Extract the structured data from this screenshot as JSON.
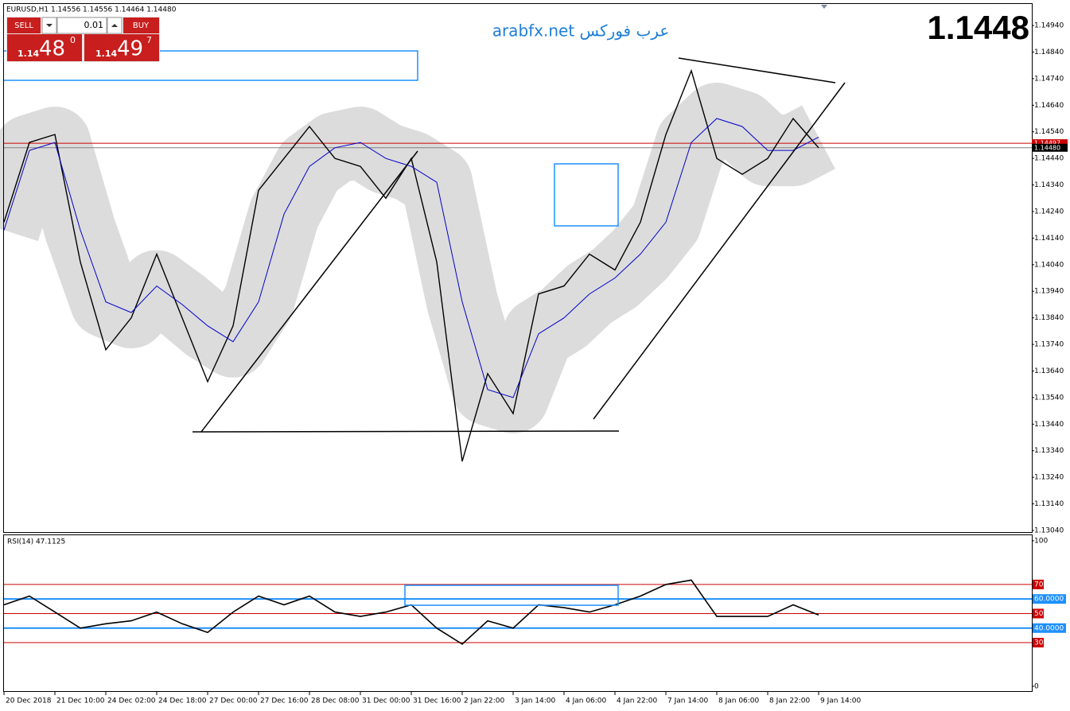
{
  "header": {
    "symbol": "EURUSD,H1  1.14556 1.14556 1.14464 1.14480"
  },
  "trade_panel": {
    "sell": "SELL",
    "buy": "BUY",
    "lot": "0.01",
    "sell_prefix": "1.14",
    "sell_big": "48",
    "sell_sup": "0",
    "buy_prefix": "1.14",
    "buy_big": "49",
    "buy_sup": "7"
  },
  "watermark": "arabfx.net عرب فوركس",
  "big_price": "1.1448",
  "chart_data": [
    {
      "type": "line",
      "x": [
        0,
        8,
        16,
        24,
        32,
        40,
        48,
        56,
        64,
        72,
        80,
        88,
        96,
        104,
        112,
        120,
        128,
        136,
        144,
        152,
        160,
        168,
        176,
        184,
        192,
        200,
        208,
        216,
        224,
        232,
        240,
        248,
        256
      ],
      "series": [
        {
          "color": "#000000",
          "values": [
            1.142,
            1.145,
            1.1453,
            1.1405,
            1.1372,
            1.1384,
            1.1408,
            1.1384,
            1.136,
            1.1381,
            1.1432,
            1.1444,
            1.1456,
            1.1444,
            1.1441,
            1.1429,
            1.1444,
            1.1405,
            1.133,
            1.1363,
            1.1348,
            1.1393,
            1.1396,
            1.1408,
            1.1402,
            1.142,
            1.1453,
            1.1477,
            1.1444,
            1.1438,
            1.1444,
            1.1459,
            1.1448
          ]
        },
        {
          "color": "#0000cc",
          "values": [
            1.1417,
            1.1447,
            1.145,
            1.1417,
            1.139,
            1.1386,
            1.1396,
            1.1389,
            1.1381,
            1.1375,
            1.139,
            1.1423,
            1.1441,
            1.1448,
            1.145,
            1.1444,
            1.1441,
            1.1435,
            1.139,
            1.1357,
            1.1354,
            1.1378,
            1.1384,
            1.1393,
            1.1399,
            1.1408,
            1.142,
            1.145,
            1.1459,
            1.1456,
            1.1447,
            1.1447,
            1.1452
          ]
        }
      ],
      "xlim": [
        0,
        323
      ],
      "xticks": [
        {
          "value": 0,
          "label": "20 Dec 2018"
        },
        {
          "value": 16,
          "label": "21 Dec 10:00"
        },
        {
          "value": 32,
          "label": "24 Dec 02:00"
        },
        {
          "value": 48,
          "label": "24 Dec 18:00"
        },
        {
          "value": 64,
          "label": "27 Dec 00:00"
        },
        {
          "value": 80,
          "label": "27 Dec 16:00"
        },
        {
          "value": 96,
          "label": "28 Dec 08:00"
        },
        {
          "value": 112,
          "label": "31 Dec 00:00"
        },
        {
          "value": 128,
          "label": "31 Dec 16:00"
        },
        {
          "value": 144,
          "label": "2 Jan 22:00"
        },
        {
          "value": 160,
          "label": "3 Jan 14:00"
        },
        {
          "value": 176,
          "label": "4 Jan 06:00"
        },
        {
          "value": 192,
          "label": "4 Jan 22:00"
        },
        {
          "value": 208,
          "label": "7 Jan 14:00"
        },
        {
          "value": 224,
          "label": "8 Jan 06:00"
        },
        {
          "value": 240,
          "label": "8 Jan 22:00"
        },
        {
          "value": 256,
          "label": "9 Jan 14:00"
        }
      ],
      "ylim": [
        1.13034,
        1.15021
      ],
      "yticks": [
        {
          "value": 1.1494,
          "label": "1.14940"
        },
        {
          "value": 1.1484,
          "label": "1.14840"
        },
        {
          "value": 1.1474,
          "label": "1.14740"
        },
        {
          "value": 1.1464,
          "label": "1.14640"
        },
        {
          "value": 1.1454,
          "label": "1.14540"
        },
        {
          "value": 1.1444,
          "label": "1.14440"
        },
        {
          "value": 1.1434,
          "label": "1.14340"
        },
        {
          "value": 1.1424,
          "label": "1.14240"
        },
        {
          "value": 1.1414,
          "label": "1.14140"
        },
        {
          "value": 1.1404,
          "label": "1.14040"
        },
        {
          "value": 1.1394,
          "label": "1.13940"
        },
        {
          "value": 1.1384,
          "label": "1.13840"
        },
        {
          "value": 1.1374,
          "label": "1.13740"
        },
        {
          "value": 1.1364,
          "label": "1.13640"
        },
        {
          "value": 1.1354,
          "label": "1.13540"
        },
        {
          "value": 1.1344,
          "label": "1.13440"
        },
        {
          "value": 1.1334,
          "label": "1.13340"
        },
        {
          "value": 1.1324,
          "label": "1.13240"
        },
        {
          "value": 1.1314,
          "label": "1.13140"
        },
        {
          "value": 1.1304,
          "label": "1.13040"
        }
      ],
      "price_lines": [
        {
          "value": 1.14497,
          "label": "1.14497",
          "color": "#cc0000"
        },
        {
          "value": 1.1448,
          "label": "1.14480",
          "color": "#808080"
        }
      ]
    },
    {
      "type": "line",
      "title": "RSI(14) 47.1125",
      "x": [
        0,
        8,
        16,
        24,
        32,
        40,
        48,
        56,
        64,
        72,
        80,
        88,
        96,
        104,
        112,
        120,
        128,
        136,
        144,
        152,
        160,
        168,
        176,
        184,
        192,
        200,
        208,
        216,
        224,
        232,
        240,
        248,
        256
      ],
      "series": [
        {
          "color": "#000000",
          "values": [
            56,
            62,
            51,
            40,
            43,
            45,
            51,
            43,
            37,
            51,
            62,
            56,
            62,
            51,
            48,
            51,
            56,
            40,
            29,
            45,
            40,
            56,
            54,
            51,
            56,
            62,
            70,
            73,
            48,
            48,
            48,
            56,
            49
          ]
        }
      ],
      "xlim": [
        0,
        323
      ],
      "ylim": [
        -3.3,
        103.8
      ],
      "yticks": [
        100,
        0
      ],
      "levels": {
        "color": "#cc0000",
        "values": [
          70,
          50,
          30
        ]
      },
      "blue_levels": {
        "color": "#1e90ff",
        "values": [
          {
            "value": 60,
            "label": "60.0000"
          },
          {
            "value": 40,
            "label": "40.0000"
          }
        ]
      }
    }
  ]
}
